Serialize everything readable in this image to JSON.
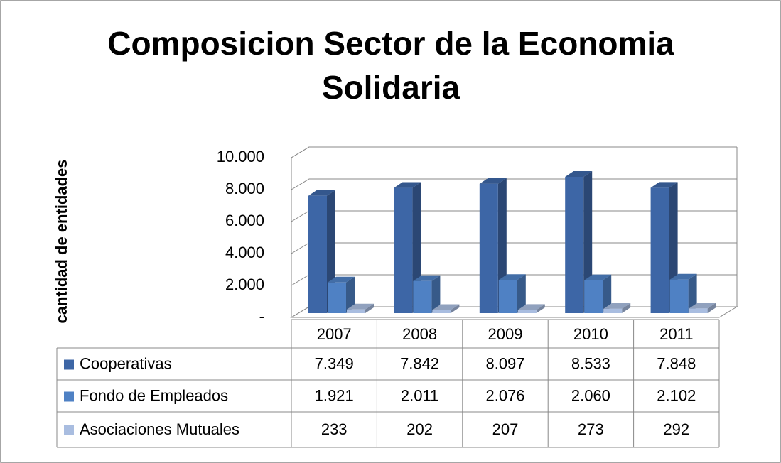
{
  "chart_data": {
    "type": "bar3d",
    "title": "Composicion Sector de la Economia Solidaria",
    "y_label": "cantidad de entidades",
    "categories": [
      "2007",
      "2008",
      "2009",
      "2010",
      "2011"
    ],
    "series": [
      {
        "name": "Cooperativas",
        "color": "#3d66a6",
        "values": [
          7349,
          7842,
          8097,
          8533,
          7848
        ],
        "value_labels": [
          "7.349",
          "7.842",
          "8.097",
          "8.533",
          "7.848"
        ]
      },
      {
        "name": "Fondo de Empleados",
        "color": "#4f81c4",
        "values": [
          1921,
          2011,
          2076,
          2060,
          2102
        ],
        "value_labels": [
          "1.921",
          "2.011",
          "2.076",
          "2.060",
          "2.102"
        ]
      },
      {
        "name": "Asociaciones Mutuales",
        "color": "#a9bde0",
        "values": [
          233,
          202,
          207,
          273,
          292
        ]
      }
    ],
    "ylim": [
      0,
      10000
    ],
    "yticks": [
      {
        "value": 0,
        "label": "-"
      },
      {
        "value": 2000,
        "label": "2.000"
      },
      {
        "value": 4000,
        "label": "4.000"
      },
      {
        "value": 6000,
        "label": "6.000"
      },
      {
        "value": 8000,
        "label": "8.000"
      },
      {
        "value": 10000,
        "label": "10.000"
      }
    ],
    "grid": true,
    "data_table": true
  }
}
